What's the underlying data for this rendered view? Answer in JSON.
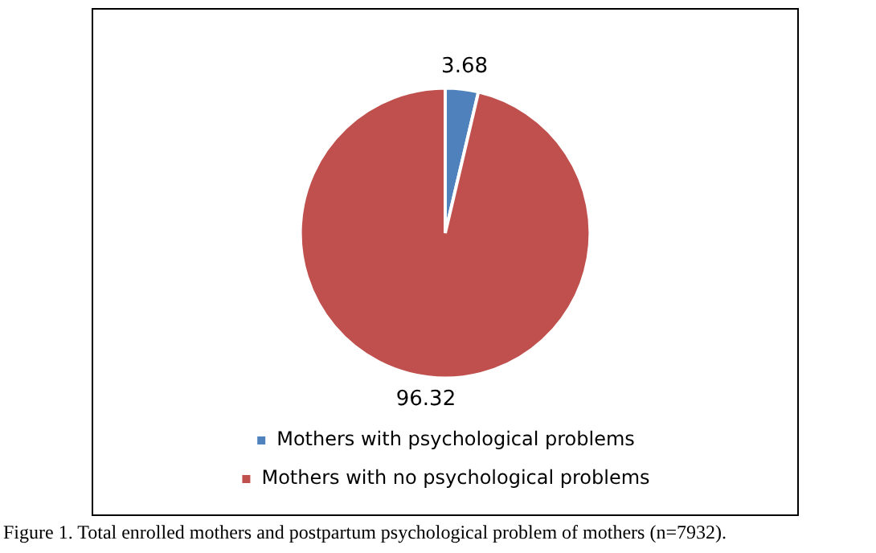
{
  "chart_data": {
    "type": "pie",
    "categories": [
      "Mothers with psychological problems",
      "Mothers with no psychological problems"
    ],
    "values": [
      3.68,
      96.32
    ],
    "colors": [
      "#4f81bd",
      "#c0504d"
    ],
    "data_labels": true,
    "legend": "bottom",
    "annotations": [
      "Figure 1. Total enrolled mothers and postpartum psychological problem of mothers (n=7932)."
    ]
  }
}
